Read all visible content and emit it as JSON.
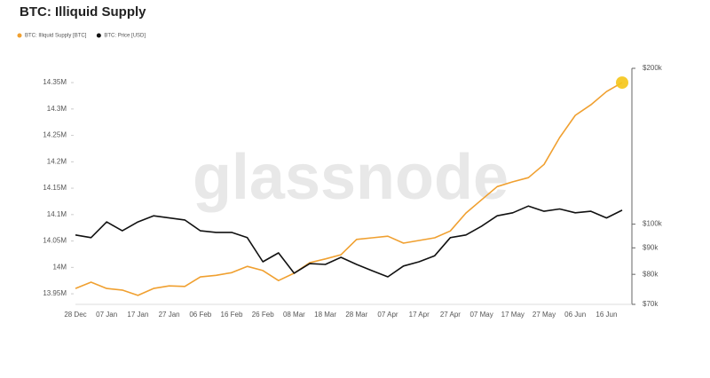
{
  "chart_data": {
    "type": "line",
    "title": "BTC: Illiquid Supply",
    "watermark": "glassnode",
    "categories": [
      "28 Dec",
      null,
      "07 Jan",
      null,
      "17 Jan",
      null,
      "27 Jan",
      null,
      "06 Feb",
      null,
      "16 Feb",
      null,
      "26 Feb",
      null,
      "08 Mar",
      null,
      "18 Mar",
      null,
      "28 Mar",
      null,
      "07 Apr",
      null,
      "17 Apr",
      null,
      "27 Apr",
      null,
      "07 May",
      null,
      "17 May",
      null,
      "27 May",
      null,
      "06 Jun",
      null,
      "16 Jun",
      null
    ],
    "series": [
      {
        "name": "BTC: Illiquid Supply [BTC]",
        "color": "#f0a030",
        "axis": "y",
        "values": [
          13960000,
          13972000,
          13960000,
          13957000,
          13947000,
          13960000,
          13965000,
          13964000,
          13982000,
          13985000,
          13990000,
          14002000,
          13994000,
          13975000,
          13989000,
          14009000,
          14016000,
          14024000,
          14053000,
          14056000,
          14059000,
          14046000,
          14051000,
          14056000,
          14069000,
          14103000,
          14128000,
          14153000,
          14162000,
          14170000,
          14195000,
          14246000,
          14288000,
          14308000,
          14333000,
          14350000
        ]
      },
      {
        "name": "BTC: Price [USD]",
        "color": "#111111",
        "axis": "y2",
        "values": [
          95300,
          94200,
          101000,
          97100,
          101000,
          103800,
          102800,
          101900,
          97100,
          96400,
          96400,
          94200,
          84600,
          88000,
          80400,
          83900,
          83600,
          86300,
          83600,
          81300,
          79100,
          83000,
          84600,
          86900,
          94200,
          95300,
          99100,
          103800,
          105200,
          108400,
          105900,
          107000,
          105200,
          105900,
          102800,
          106400
        ]
      }
    ],
    "ylim": [
      13930000,
      14377000
    ],
    "yticks": [
      {
        "value": 13950000,
        "label": "13.95M"
      },
      {
        "value": 14000000,
        "label": "14M"
      },
      {
        "value": 14050000,
        "label": "14.05M"
      },
      {
        "value": 14100000,
        "label": "14.1M"
      },
      {
        "value": 14150000,
        "label": "14.15M"
      },
      {
        "value": 14200000,
        "label": "14.2M"
      },
      {
        "value": 14250000,
        "label": "14.25M"
      },
      {
        "value": 14300000,
        "label": "14.3M"
      },
      {
        "value": 14350000,
        "label": "14.35M"
      }
    ],
    "y2lim": [
      70000,
      200000
    ],
    "y2log": true,
    "y2ticks": [
      {
        "value": 70000,
        "label": "$70k"
      },
      {
        "value": 80000,
        "label": "$80k"
      },
      {
        "value": 90000,
        "label": "$90k"
      },
      {
        "value": 100000,
        "label": "$100k"
      },
      {
        "value": 200000,
        "label": "$200k"
      }
    ],
    "endpoint_color": "#f5c518",
    "grid": false
  }
}
